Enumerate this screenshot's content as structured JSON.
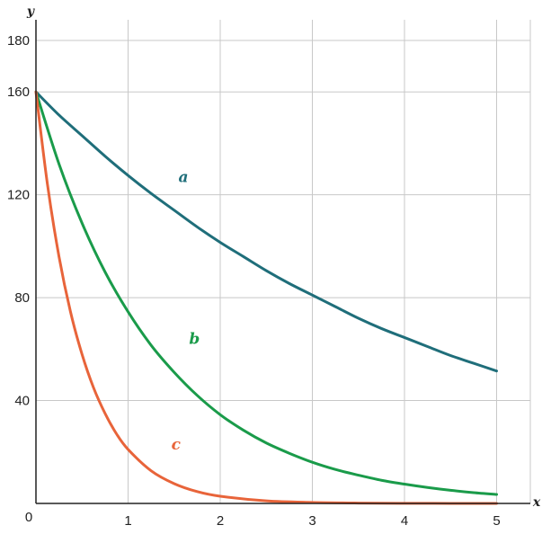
{
  "chart_data": {
    "type": "line",
    "xlabel": "x",
    "ylabel": "y",
    "origin_label": "0",
    "xlim": [
      0,
      5
    ],
    "ylim": [
      0,
      180
    ],
    "xticks": [
      1,
      2,
      3,
      4,
      5
    ],
    "yticks": [
      40,
      80,
      120,
      160,
      180
    ],
    "grid": true,
    "series": [
      {
        "name": "a",
        "color": "#1f6e7a",
        "label_at": [
          1.6,
          125
        ],
        "x": [
          0,
          0.25,
          0.5,
          0.75,
          1,
          1.25,
          1.5,
          1.75,
          2,
          2.25,
          2.5,
          2.75,
          3,
          3.25,
          3.5,
          3.75,
          4,
          4.25,
          4.5,
          4.75,
          5
        ],
        "y": [
          160,
          151,
          143,
          135,
          127.5,
          120.5,
          114,
          107.5,
          101.5,
          96,
          90.5,
          85.5,
          81,
          76.5,
          72,
          68,
          64.5,
          61,
          57.5,
          54.5,
          51.5
        ]
      },
      {
        "name": "b",
        "color": "#1a9b4a",
        "label_at": [
          1.72,
          62
        ],
        "x": [
          0,
          0.25,
          0.5,
          0.75,
          1,
          1.25,
          1.5,
          1.75,
          2,
          2.25,
          2.5,
          2.75,
          3,
          3.25,
          3.5,
          3.75,
          4,
          4.25,
          4.5,
          4.75,
          5
        ],
        "y": [
          160,
          132,
          109,
          90,
          74.5,
          61.5,
          51,
          42,
          34.5,
          28.5,
          23.5,
          19.5,
          16,
          13.2,
          11,
          9,
          7.5,
          6.2,
          5.1,
          4.2,
          3.5
        ]
      },
      {
        "name": "c",
        "color": "#e8643a",
        "label_at": [
          1.52,
          21
        ],
        "x": [
          0,
          0.125,
          0.25,
          0.375,
          0.5,
          0.625,
          0.75,
          0.875,
          1,
          1.25,
          1.5,
          1.75,
          2,
          2.5,
          3,
          3.5,
          4,
          4.5,
          5
        ],
        "y": [
          160,
          124,
          96,
          74.5,
          58,
          45,
          35,
          27,
          21,
          12.7,
          7.7,
          4.6,
          2.8,
          1,
          0.4,
          0.15,
          0.05,
          0.02,
          0
        ]
      }
    ]
  }
}
